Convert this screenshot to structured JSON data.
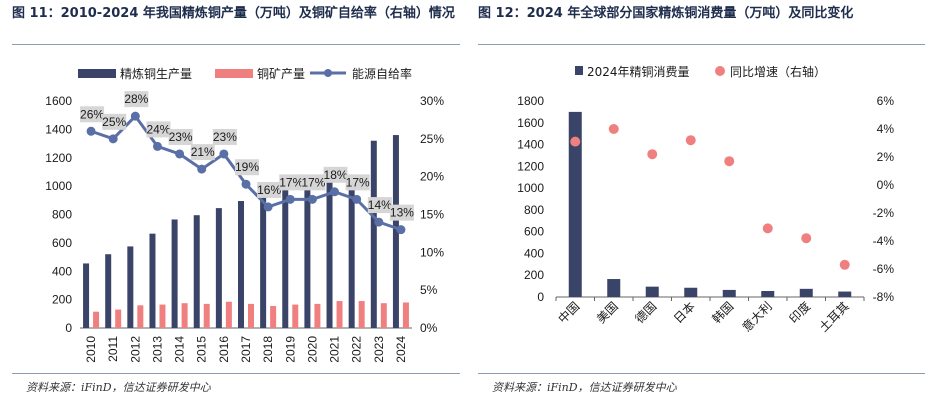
{
  "chart_left": {
    "title": "图 11：2010-2024 年我国精炼铜产量（万吨）及铜矿自给率（右轴）情况",
    "source": "资料来源：iFinD，信达证券研发中心",
    "colors": {
      "bar_primary": "#3a4468",
      "bar_secondary": "#f08080",
      "line": "#5a6fa6",
      "label_bg": "#d6d6d6"
    }
  },
  "chart_right": {
    "title": "图 12：2024 年全球部分国家精炼铜消费量（万吨）及同比变化",
    "source": "资料来源：iFinD，信达证券研发中心",
    "colors": {
      "bar": "#3a4468",
      "dot": "#f08080"
    }
  },
  "chart_data": [
    {
      "type": "bar+line",
      "title": "2010-2024 年我国精炼铜产量（万吨）及铜矿自给率（右轴）情况",
      "categories": [
        "2010",
        "2011",
        "2012",
        "2013",
        "2014",
        "2015",
        "2016",
        "2017",
        "2018",
        "2019",
        "2020",
        "2021",
        "2022",
        "2023",
        "2024"
      ],
      "series": [
        {
          "name": "精炼铜生产量",
          "kind": "bar",
          "axis": "left",
          "values": [
            455,
            520,
            575,
            665,
            765,
            795,
            845,
            895,
            975,
            975,
            1000,
            1050,
            1000,
            1320,
            1360
          ]
        },
        {
          "name": "铜矿产量",
          "kind": "bar",
          "axis": "left",
          "values": [
            115,
            130,
            160,
            165,
            175,
            170,
            185,
            170,
            155,
            165,
            170,
            190,
            190,
            175,
            180
          ]
        },
        {
          "name": "能源自给率",
          "kind": "line",
          "axis": "right",
          "values": [
            26,
            25,
            28,
            24,
            23,
            21,
            23,
            19,
            16,
            17,
            17,
            18,
            17,
            14,
            13
          ],
          "labels": [
            "26%",
            "25%",
            "28%",
            "24%",
            "23%",
            "21%",
            "23%",
            "19%",
            "16%",
            "17%",
            "17%",
            "18%",
            "17%",
            "14%",
            "13%"
          ]
        }
      ],
      "ylim_left": [
        0,
        1600
      ],
      "yticks_left": [
        "0",
        "200",
        "400",
        "600",
        "800",
        "1000",
        "1200",
        "1400",
        "1600"
      ],
      "ylim_right": [
        0,
        30
      ],
      "yticks_right": [
        "0%",
        "5%",
        "10%",
        "15%",
        "20%",
        "25%",
        "30%"
      ],
      "legend": [
        "精炼铜生产量",
        "铜矿产量",
        "能源自给率"
      ],
      "legend_position": "top",
      "grid": false
    },
    {
      "type": "bar+scatter",
      "title": "2024 年全球部分国家精炼铜消费量（万吨）及同比变化",
      "categories": [
        "中国",
        "美国",
        "德国",
        "日本",
        "韩国",
        "意大利",
        "印度",
        "土耳其"
      ],
      "series": [
        {
          "name": "2024年精铜消费量",
          "kind": "bar",
          "axis": "left",
          "values": [
            1700,
            165,
            95,
            85,
            65,
            55,
            75,
            50
          ]
        },
        {
          "name": "同比增速（右轴）",
          "kind": "scatter",
          "axis": "right",
          "values": [
            3.1,
            4.0,
            2.2,
            3.2,
            1.7,
            -3.1,
            -3.8,
            -5.7
          ]
        }
      ],
      "ylim_left": [
        0,
        1800
      ],
      "yticks_left": [
        "0",
        "200",
        "400",
        "600",
        "800",
        "1000",
        "1200",
        "1400",
        "1600",
        "1800"
      ],
      "ylim_right": [
        -8,
        6
      ],
      "yticks_right": [
        "-8%",
        "-6%",
        "-4%",
        "-2%",
        "0%",
        "2%",
        "4%",
        "6%"
      ],
      "legend": [
        "2024年精铜消费量",
        "同比增速（右轴）"
      ],
      "legend_position": "top",
      "grid": false
    }
  ]
}
